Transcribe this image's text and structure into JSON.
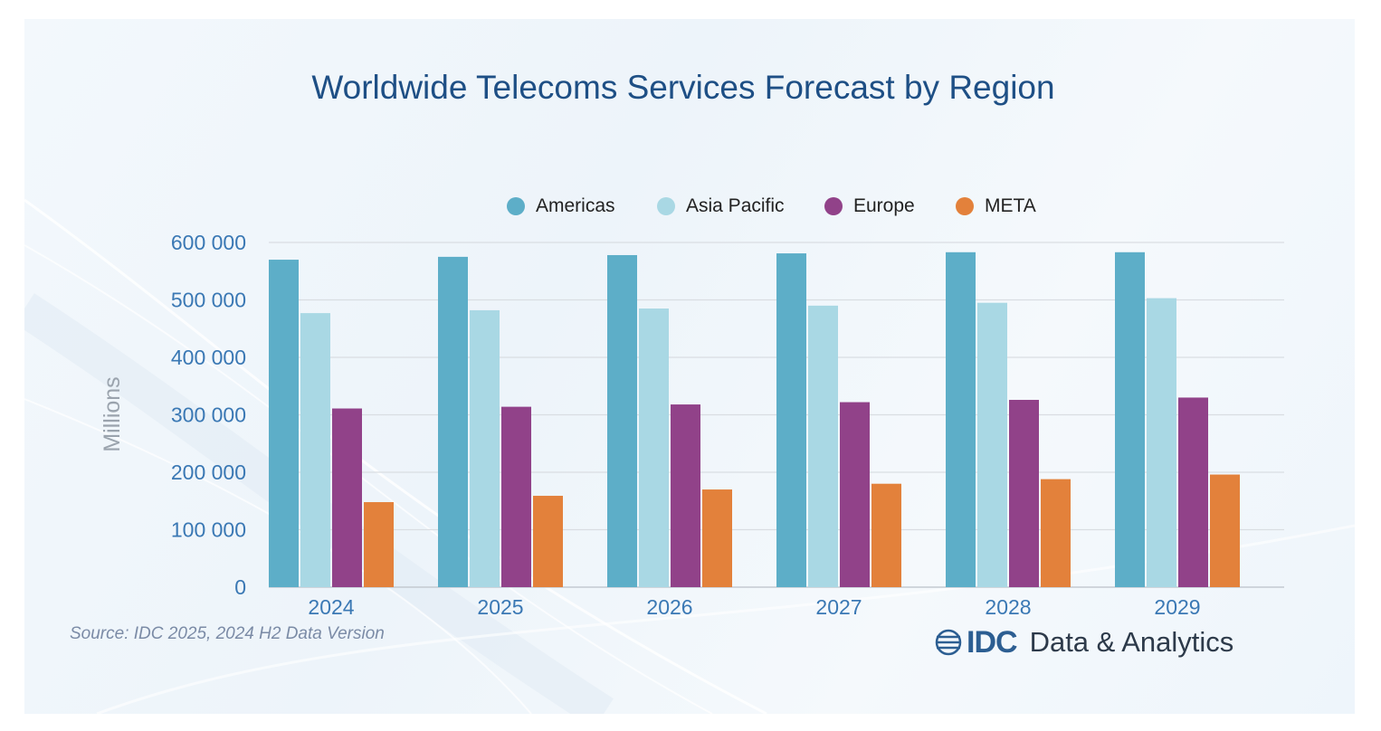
{
  "chart_data": {
    "type": "bar",
    "title": "Worldwide Telecoms Services Forecast by Region",
    "xlabel": "",
    "ylabel": "Millions",
    "ylim": [
      0,
      600000
    ],
    "yticks": [
      "0",
      "100 000",
      "200 000",
      "300 000",
      "400 000",
      "500 000",
      "600 000"
    ],
    "ytick_values": [
      0,
      100000,
      200000,
      300000,
      400000,
      500000,
      600000
    ],
    "categories": [
      "2024",
      "2025",
      "2026",
      "2027",
      "2028",
      "2029"
    ],
    "legend_position": "top",
    "grid": true,
    "series": [
      {
        "name": "Americas",
        "color": "#5daec8",
        "values": [
          570000,
          575000,
          578000,
          581000,
          583000,
          583000
        ]
      },
      {
        "name": "Asia Pacific",
        "color": "#a9d8e4",
        "values": [
          477000,
          482000,
          485000,
          490000,
          495000,
          503000
        ]
      },
      {
        "name": "Europe",
        "color": "#914289",
        "values": [
          311000,
          314000,
          318000,
          322000,
          326000,
          330000
        ]
      },
      {
        "name": "META",
        "color": "#e3813b",
        "values": [
          148000,
          159000,
          170000,
          180000,
          188000,
          196000
        ]
      }
    ]
  },
  "footer": {
    "source": "Source: IDC 2025, 2024 H2 Data Version",
    "brand_logo": "IDC",
    "brand_suffix": "Data & Analytics"
  },
  "colors": {
    "title": "#1e4f85",
    "tick_labels": "#3a78b4",
    "axis_label": "#9aa3ad",
    "gridline": "#d9dde2",
    "source": "#7b8ba6"
  }
}
